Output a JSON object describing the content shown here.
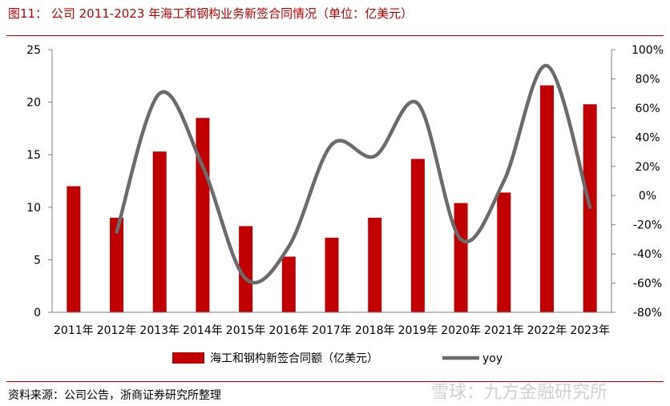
{
  "header": {
    "title": "图11： 公司 2011-2023 年海工和钢构业务新签合同情况（单位：亿美元）"
  },
  "footer": {
    "source": "资料来源：公司公告，浙商证券研究所整理",
    "watermark": "雪球：九方金融研究所"
  },
  "chart_data": {
    "type": "bar",
    "categories": [
      "2011年",
      "2012年",
      "2013年",
      "2014年",
      "2015年",
      "2016年",
      "2017年",
      "2018年",
      "2019年",
      "2020年",
      "2021年",
      "2022年",
      "2023年"
    ],
    "series": [
      {
        "name": "海工和钢构新签合同额（亿美元）",
        "type": "bar",
        "axis": "left",
        "color": "#c00000",
        "values": [
          12.0,
          9.0,
          15.3,
          18.5,
          8.2,
          5.3,
          7.1,
          9.0,
          14.6,
          10.4,
          11.4,
          21.6,
          19.8
        ]
      },
      {
        "name": "yoy",
        "type": "line",
        "axis": "right",
        "smooth": true,
        "color": "#6b6b6b",
        "values": [
          null,
          -25,
          70,
          20,
          -57,
          -35,
          35,
          27,
          63,
          -30,
          10,
          89,
          -8
        ]
      }
    ],
    "left_axis": {
      "ylim": [
        0,
        25
      ],
      "ticks": [
        "0",
        "5",
        "10",
        "15",
        "20",
        "25"
      ]
    },
    "right_axis": {
      "ylim": [
        -80,
        100
      ],
      "ticks": [
        "-80%",
        "-60%",
        "-40%",
        "-20%",
        "0%",
        "20%",
        "40%",
        "60%",
        "80%",
        "100%"
      ]
    },
    "legend": "bottom",
    "grid": false
  }
}
